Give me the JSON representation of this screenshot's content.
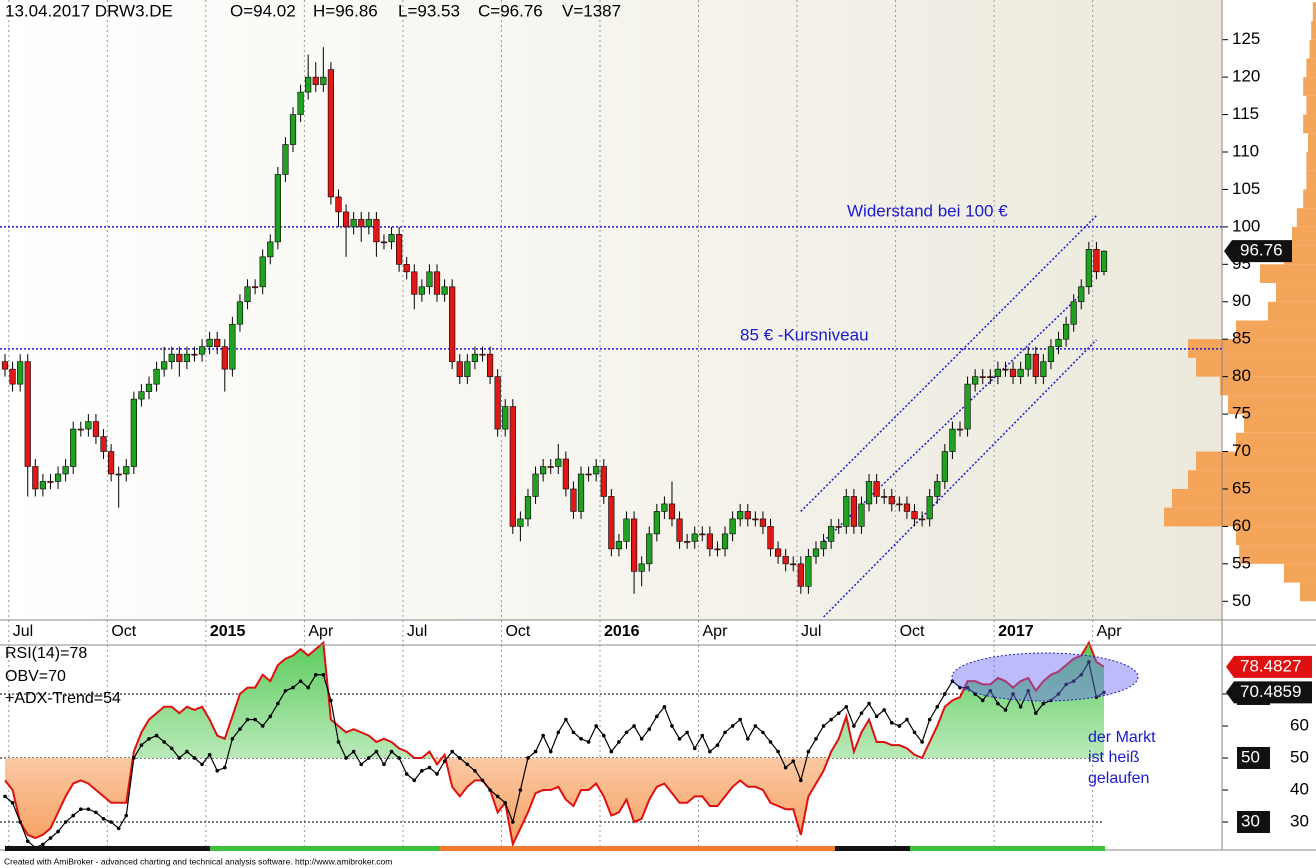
{
  "header": {
    "title": "13.04.2017 DRW3.DE",
    "ohlcv": [
      "O=94.02",
      "H=96.86",
      "L=93.53",
      "C=96.76",
      "V=1387"
    ]
  },
  "footer": "Created with AmiBroker - advanced charting and technical analysis software. http://www.amibroker.com",
  "chart_data": [
    {
      "type": "candlestick",
      "up_color": "#22a022",
      "down_color": "#e01818",
      "categories": [
        null,
        "Jul",
        null,
        null,
        null,
        null,
        null,
        null,
        null,
        null,
        null,
        null,
        null,
        null,
        "Oct",
        null,
        null,
        null,
        null,
        null,
        null,
        null,
        null,
        null,
        null,
        null,
        null,
        "2015",
        null,
        null,
        null,
        null,
        null,
        null,
        null,
        null,
        null,
        null,
        null,
        null,
        "Apr",
        null,
        null,
        null,
        null,
        null,
        null,
        null,
        null,
        null,
        null,
        null,
        null,
        "Jul",
        null,
        null,
        null,
        null,
        null,
        null,
        null,
        null,
        null,
        null,
        null,
        null,
        "Oct",
        null,
        null,
        null,
        null,
        null,
        null,
        null,
        null,
        null,
        null,
        null,
        null,
        "2016",
        null,
        null,
        null,
        null,
        null,
        null,
        null,
        null,
        null,
        null,
        null,
        null,
        "Apr",
        null,
        null,
        null,
        null,
        null,
        null,
        null,
        null,
        null,
        null,
        null,
        null,
        "Jul",
        null,
        null,
        null,
        null,
        null,
        null,
        null,
        null,
        null,
        null,
        null,
        null,
        "Oct",
        null,
        null,
        null,
        null,
        null,
        null,
        null,
        null,
        null,
        null,
        null,
        null,
        "2017",
        null,
        null,
        null,
        null,
        null,
        null,
        null,
        null,
        null,
        null,
        null,
        null,
        "Apr",
        null
      ],
      "open": [
        82,
        81,
        79,
        82,
        68,
        65,
        66,
        66,
        67,
        68,
        73,
        73,
        74,
        72,
        70,
        67,
        67,
        68,
        77,
        78,
        79,
        81,
        82,
        83,
        82,
        83,
        83,
        84,
        85,
        84,
        81,
        87,
        90,
        92,
        92,
        96,
        98,
        107,
        111,
        115,
        118,
        120,
        119,
        121,
        104,
        102,
        100,
        101,
        100,
        101,
        98,
        98,
        99,
        95,
        94,
        91,
        92,
        94,
        91,
        92,
        82,
        80,
        82,
        83,
        83,
        80,
        73,
        76,
        60,
        61,
        64,
        67,
        68,
        68,
        69,
        65,
        62,
        67,
        67,
        68,
        64,
        57,
        58,
        61,
        54,
        55,
        59,
        62,
        63,
        61,
        58,
        58,
        59,
        59,
        57,
        57,
        59,
        61,
        62,
        61,
        61,
        60,
        57,
        56,
        55,
        55,
        52,
        56,
        57,
        58,
        60,
        60,
        64,
        60,
        63,
        66,
        64,
        64,
        63,
        63,
        62,
        61,
        61,
        64,
        66,
        70,
        73,
        73,
        79,
        80,
        80,
        80,
        81,
        81,
        80,
        81,
        83,
        80,
        82,
        84,
        85,
        87,
        90,
        92,
        97,
        94.02
      ],
      "high": [
        83,
        82,
        83,
        83,
        69,
        67,
        67,
        68,
        69,
        74,
        74,
        75,
        75,
        73,
        71,
        68,
        69,
        78,
        79,
        80,
        82,
        84,
        84,
        84,
        84,
        84,
        85,
        86,
        86,
        85,
        88,
        91,
        93,
        93,
        97,
        99,
        108,
        112,
        116,
        119,
        123,
        122,
        124,
        122,
        105,
        103,
        102,
        102,
        102,
        102,
        99,
        100,
        100,
        96,
        95,
        93,
        95,
        95,
        93,
        93,
        83,
        83,
        84,
        84,
        84,
        81,
        77,
        77,
        62,
        65,
        68,
        69,
        69,
        71,
        70,
        66,
        68,
        68,
        69,
        69,
        65,
        59,
        62,
        62,
        56,
        60,
        63,
        64,
        66,
        62,
        59,
        60,
        60,
        60,
        58,
        60,
        62,
        63,
        63,
        62,
        62,
        61,
        58,
        57,
        56,
        56,
        57,
        58,
        59,
        61,
        61,
        65,
        65,
        64,
        67,
        67,
        65,
        65,
        64,
        64,
        63,
        62,
        65,
        67,
        71,
        74,
        74,
        80,
        81,
        81,
        81,
        82,
        82,
        82,
        82,
        84,
        84,
        83,
        85,
        86,
        88,
        91,
        93,
        98,
        98,
        96.86
      ],
      "low": [
        80,
        78,
        78,
        64,
        64,
        64,
        65,
        65,
        66,
        67,
        72,
        72,
        71,
        69,
        66,
        62.5,
        66,
        67,
        76,
        77,
        78,
        80,
        81,
        80,
        81,
        82,
        82,
        83,
        83,
        78,
        80,
        86,
        89,
        91,
        91,
        95,
        97,
        106,
        110,
        114,
        117,
        118,
        118,
        103,
        100,
        96,
        99,
        98,
        99,
        96,
        97,
        97,
        94,
        93,
        89,
        90,
        91,
        90,
        90,
        81,
        79,
        79,
        81,
        82,
        79,
        72,
        72,
        59,
        58,
        60,
        63,
        66,
        67,
        67,
        64,
        61,
        61,
        66,
        66,
        63,
        56,
        56,
        57,
        51,
        52,
        54,
        58,
        61,
        60,
        57,
        57,
        57,
        58,
        56,
        56,
        56,
        58,
        60,
        60,
        60,
        59,
        56,
        55,
        54,
        54,
        51,
        51,
        55,
        56,
        57,
        59,
        59,
        59,
        59,
        62,
        63,
        63,
        62,
        62,
        61,
        60,
        60,
        60,
        63,
        65,
        69,
        72,
        72,
        78,
        79,
        79,
        79,
        80,
        79,
        79,
        80,
        79,
        79,
        81,
        83,
        84,
        86,
        89,
        91,
        93,
        93.53
      ],
      "close": [
        81,
        79,
        82,
        68,
        65,
        66,
        66,
        67,
        68,
        73,
        73,
        74,
        72,
        70,
        67,
        67,
        68,
        77,
        78,
        79,
        81,
        82,
        83,
        82,
        83,
        83,
        84,
        85,
        84,
        81,
        87,
        90,
        92,
        92,
        96,
        98,
        107,
        111,
        115,
        118,
        120,
        119,
        120,
        104,
        102,
        100,
        101,
        100,
        101,
        98,
        98,
        99,
        95,
        94,
        91,
        92,
        94,
        91,
        92,
        82,
        80,
        82,
        83,
        83,
        80,
        73,
        76,
        60,
        61,
        64,
        67,
        68,
        68,
        69,
        65,
        62,
        67,
        67,
        68,
        64,
        57,
        58,
        61,
        54,
        55,
        59,
        62,
        63,
        61,
        58,
        58,
        59,
        59,
        57,
        57,
        59,
        61,
        62,
        61,
        61,
        60,
        57,
        56,
        55,
        55,
        52,
        56,
        57,
        58,
        60,
        60,
        64,
        60,
        63,
        66,
        64,
        64,
        63,
        63,
        62,
        61,
        61,
        64,
        66,
        70,
        73,
        73,
        79,
        80,
        80,
        80,
        81,
        81,
        80,
        81,
        83,
        80,
        82,
        84,
        85,
        87,
        90,
        92,
        97,
        94,
        96.76
      ],
      "ylim": [
        47.5,
        130.3
      ],
      "yticks": [
        50,
        55,
        60,
        65,
        70,
        75,
        80,
        85,
        90,
        95,
        100,
        105,
        110,
        115,
        120,
        125
      ],
      "hlines": [
        100,
        83.7
      ],
      "channel": [
        {
          "x": [
            105,
            144
          ],
          "y": [
            62,
            101.5
          ]
        },
        {
          "x": [
            108,
            142
          ],
          "y": [
            58,
            91
          ]
        },
        {
          "x": [
            108,
            144
          ],
          "y": [
            47.9,
            84.9
          ]
        }
      ],
      "annotations": [
        "Widerstand bei 100 €",
        "85 € -Kursniveau"
      ],
      "volume_profile": {
        "color": "#f5a55a",
        "xlim": [
          0,
          100
        ],
        "bins": [
          50,
          52.5,
          55,
          57.5,
          60,
          62.5,
          65,
          67.5,
          70,
          72.5,
          75,
          77.5,
          80,
          82.5,
          85,
          87.5,
          90,
          92.5,
          95,
          97.5,
          100,
          102.5,
          105,
          107.5,
          110,
          112.5,
          115,
          117.5,
          120,
          122.5,
          125,
          127.5,
          130
        ],
        "values": [
          10,
          20,
          48,
          50,
          95,
          90,
          80,
          75,
          50,
          45,
          55,
          60,
          75,
          80,
          50,
          30,
          25,
          35,
          20,
          15,
          12,
          8,
          6,
          6,
          5,
          8,
          6,
          8,
          6,
          4,
          3,
          2
        ]
      }
    },
    {
      "type": "line",
      "series": [
        {
          "name": "RSI(14)=78",
          "color": "#e01010",
          "values": [
            43,
            40,
            30,
            26,
            25,
            26,
            28,
            33,
            38,
            42,
            43,
            42,
            40,
            38,
            36,
            36,
            36,
            52,
            58,
            62,
            64,
            66,
            66,
            64,
            66,
            65,
            66,
            62,
            57,
            56,
            63,
            70,
            72,
            72,
            76,
            74,
            79,
            81,
            82,
            84,
            82,
            84,
            86,
            62,
            60,
            58,
            59,
            58,
            57,
            55,
            56,
            55,
            53,
            52,
            50,
            50,
            52,
            48,
            51,
            41,
            38,
            41,
            43,
            43,
            40,
            33,
            36,
            23,
            28,
            33,
            39,
            40,
            40,
            41,
            37,
            35,
            40,
            40,
            42,
            38,
            32,
            33,
            37,
            30,
            31,
            37,
            41,
            42,
            39,
            36,
            36,
            38,
            38,
            35,
            35,
            38,
            41,
            43,
            41,
            41,
            40,
            36,
            35,
            34,
            34,
            26,
            38,
            42,
            46,
            52,
            56,
            63,
            52,
            58,
            62,
            55,
            55,
            54,
            54,
            53,
            51,
            50,
            55,
            60,
            66,
            68,
            69,
            74,
            74,
            73,
            73,
            75,
            74,
            72,
            74,
            75,
            71,
            74,
            76,
            77,
            79,
            81,
            82,
            86,
            80,
            78.4827
          ]
        },
        {
          "name": "OBV=70",
          "color": "#000000",
          "values": [
            38,
            36,
            30,
            24,
            22,
            23,
            25,
            27,
            30,
            32,
            34,
            34,
            33,
            31,
            30,
            28,
            32,
            50,
            54,
            56,
            57,
            55,
            53,
            50,
            52,
            50,
            48,
            51,
            46,
            47,
            56,
            59,
            62,
            62,
            60,
            63,
            67,
            71,
            72,
            74,
            72,
            76,
            76,
            68,
            55,
            50,
            52,
            48,
            50,
            52,
            48,
            52,
            50,
            45,
            43,
            46,
            47,
            45,
            49,
            52,
            50,
            48,
            46,
            43,
            40,
            38,
            36,
            30,
            40,
            50,
            52,
            57,
            52,
            58,
            62,
            58,
            56,
            55,
            60,
            57,
            52,
            55,
            58,
            60,
            56,
            59,
            63,
            66,
            60,
            56,
            58,
            53,
            57,
            52,
            54,
            58,
            60,
            62,
            56,
            60,
            58,
            55,
            52,
            47,
            49,
            43,
            52,
            56,
            60,
            62,
            64,
            66,
            60,
            64,
            67,
            63,
            65,
            61,
            60,
            62,
            58,
            55,
            62,
            66,
            70,
            74,
            72,
            72,
            70,
            68,
            71,
            67,
            65,
            70,
            66,
            71,
            64,
            67,
            68,
            70,
            73,
            74,
            76,
            80,
            69,
            70.4859
          ]
        }
      ],
      "legend_extra": "+ADX-Trend=54",
      "ylim": [
        21.25,
        85.3
      ],
      "yticks": [
        30,
        40,
        50,
        60,
        70
      ],
      "levels": [
        70,
        50,
        30
      ],
      "fill_up_color": "#5ccc5c",
      "fill_down_color": "#f7a060",
      "annotations": [
        "der Markt",
        "ist heiß",
        "gelaufen"
      ]
    }
  ]
}
